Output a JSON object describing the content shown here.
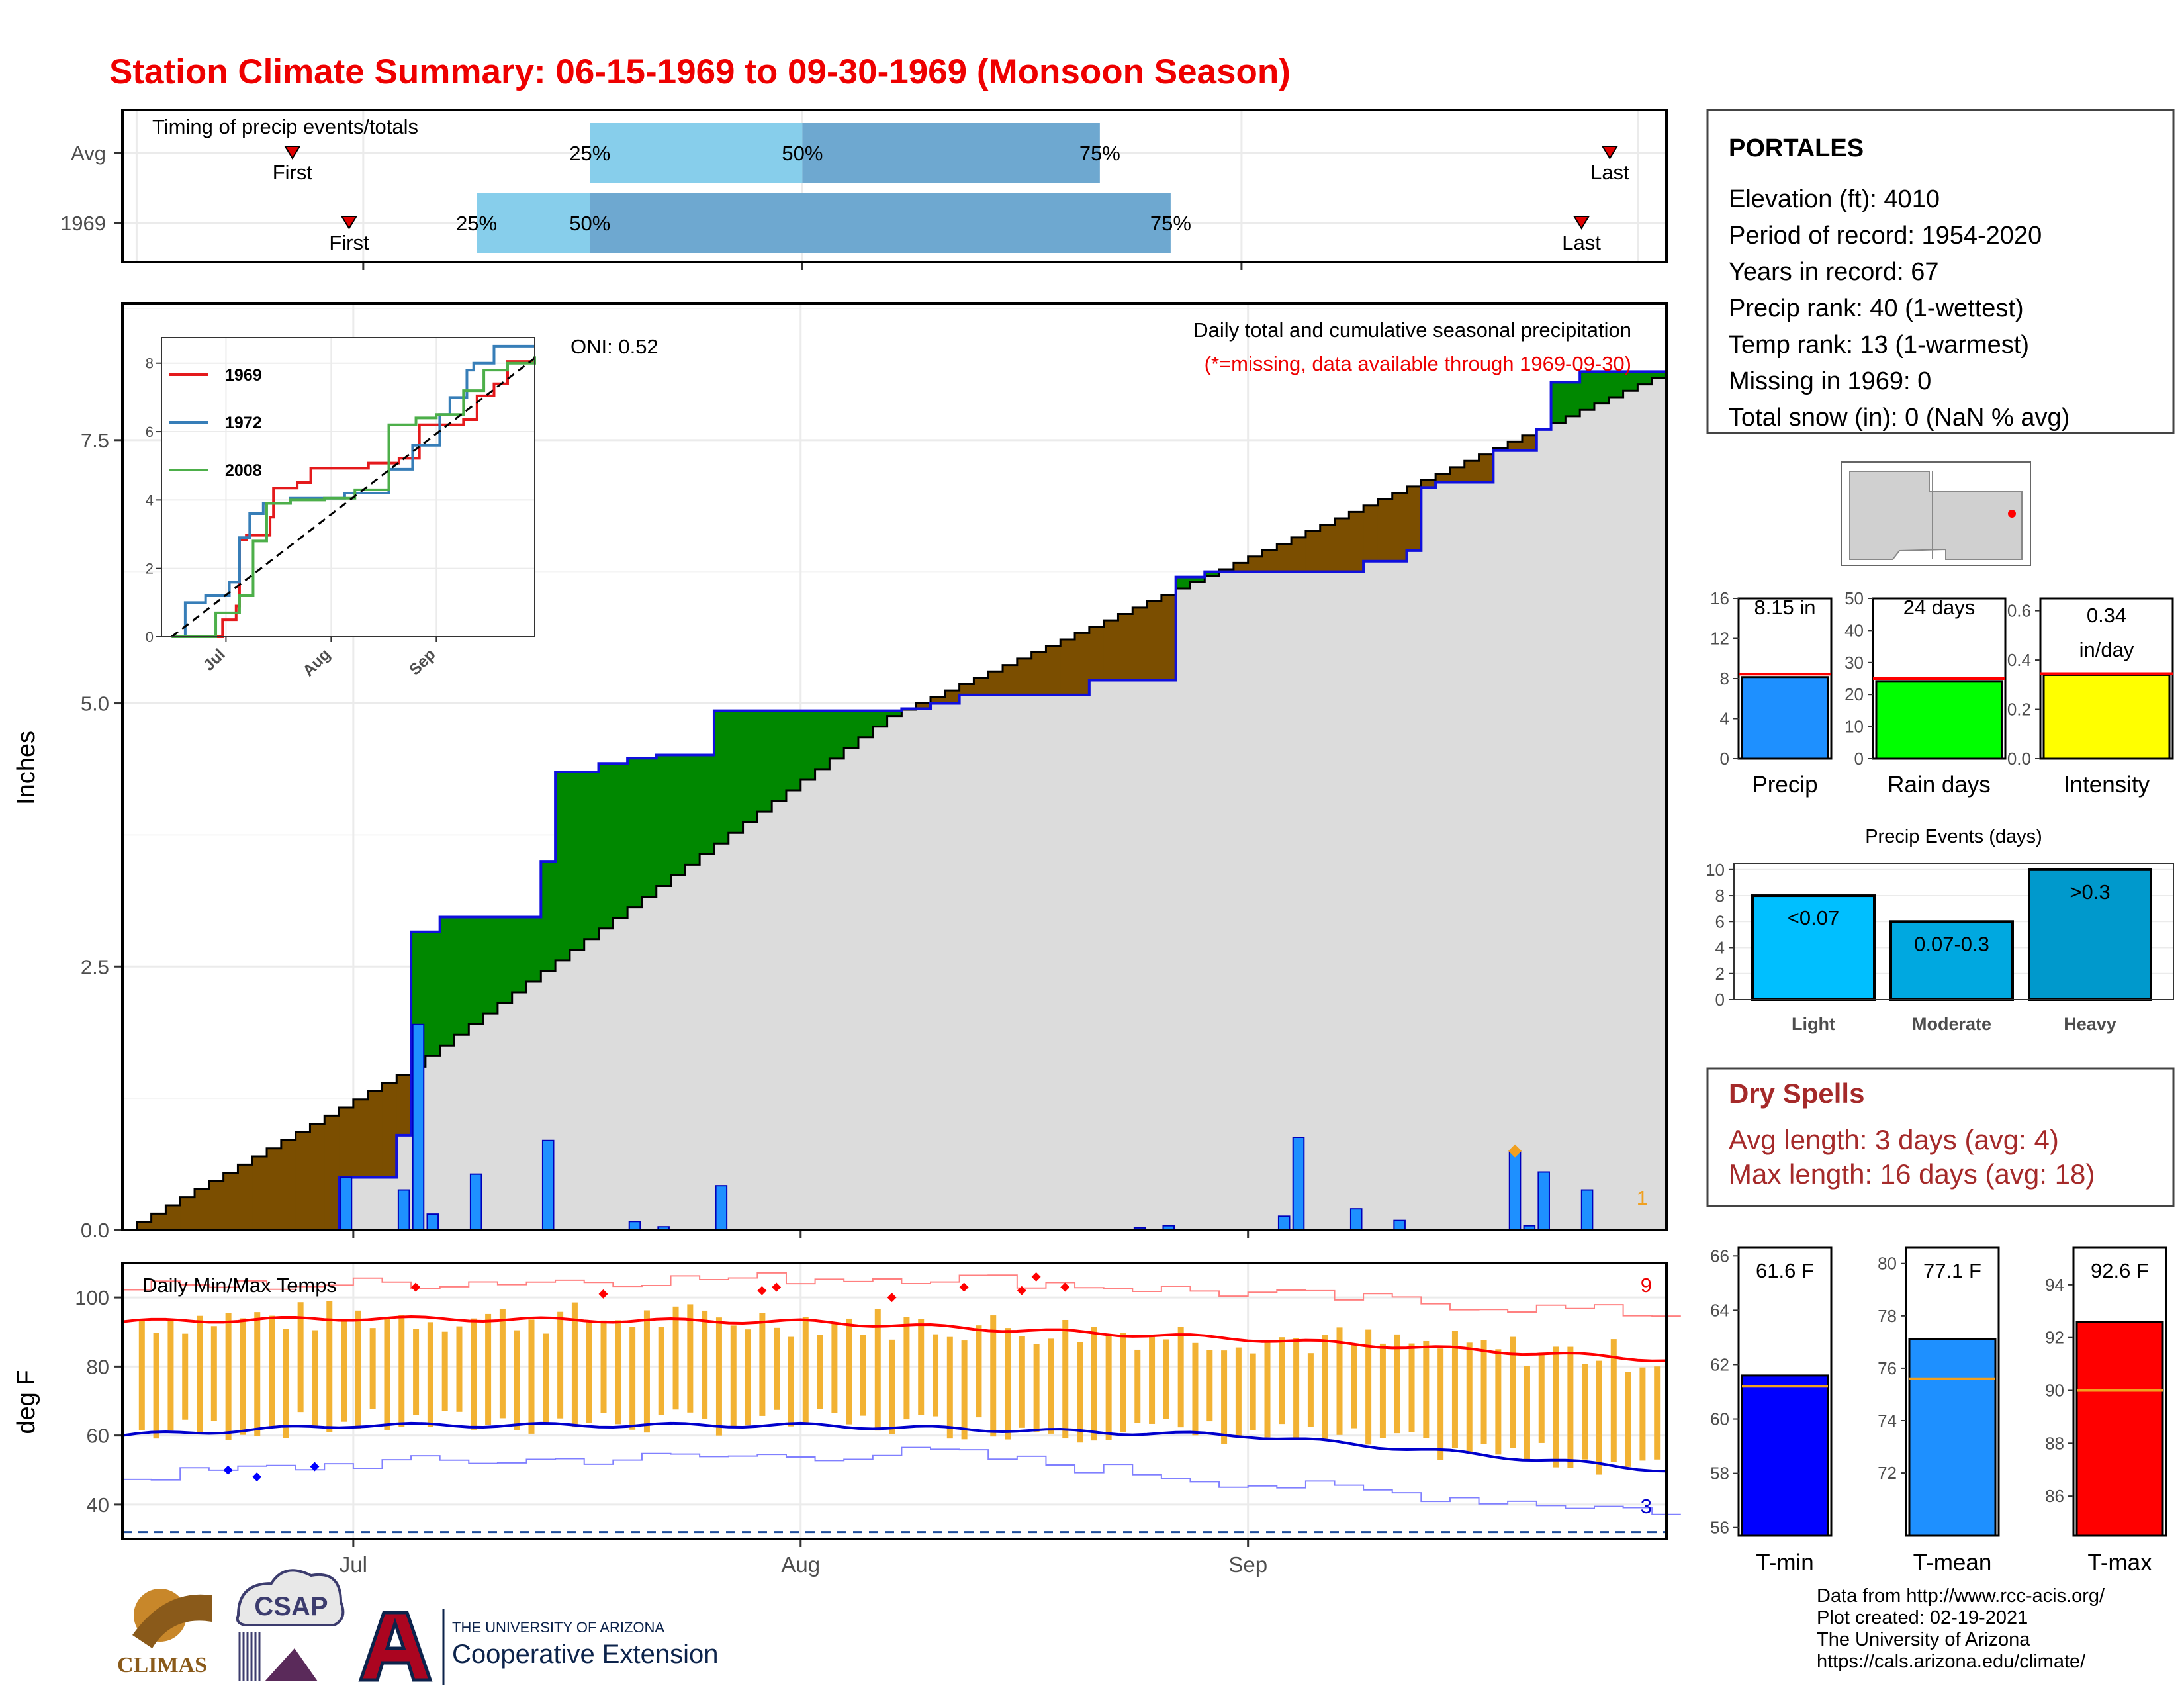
{
  "title": "Station Climate Summary: 06-15-1969 to 09-30-1969 (Monsoon Season)",
  "colors": {
    "title": "#ee0000",
    "normal_fill": "#dcdcdc",
    "above": "#008800",
    "below": "#7b4e00",
    "daily_bar": "#1e90ff",
    "timing_light": "#87ceeb",
    "timing_dark": "#6ea8d0",
    "tmax": "#ff0000",
    "tmin": "#0000cc",
    "temp_bar": "#f2b233",
    "dry": "#a52a2a"
  },
  "timing": {
    "title": "Timing of precip events/totals",
    "rows": [
      {
        "label": "Avg",
        "first": "First",
        "last": "Last",
        "p25": "25%",
        "p50": "50%",
        "p75": "75%",
        "first_date": "1969-06-26",
        "p25_date": "1969-07-17",
        "p50_date": "1969-08-01",
        "p75_date": "1969-08-22",
        "last_date": "1969-09-27"
      },
      {
        "label": "1969",
        "first": "First",
        "last": "Last",
        "p25": "25%",
        "p50": "50%",
        "p75": "75%",
        "first_date": "1969-06-30",
        "p25_date": "1969-07-09",
        "p50_date": "1969-07-17",
        "p75_date": "1969-08-27",
        "last_date": "1969-09-25"
      }
    ]
  },
  "station": {
    "name": "PORTALES",
    "lines": [
      "Elevation (ft): 4010",
      "Period of record: 1954-2020",
      "Years in record: 67",
      "Precip rank: 40 (1-wettest)",
      "Temp rank: 13 (1-warmest)",
      "Missing in 1969: 0",
      "Total snow (in): 0 (NaN % avg)"
    ]
  },
  "precip_panel": {
    "ylabel": "Inches",
    "yticks": [
      "0.0",
      "2.5",
      "5.0",
      "7.5"
    ],
    "oni": "ONI: 0.52",
    "subtitle": "Daily total and cumulative seasonal precipitation",
    "missing_note": "(*=missing, data available through 1969-09-30)",
    "corner_count": "1",
    "month_labels": [
      "Jul",
      "Aug",
      "Sep"
    ]
  },
  "inset": {
    "yticks": [
      "0",
      "2",
      "4",
      "6",
      "8"
    ],
    "xticks": [
      "Jul",
      "Aug",
      "Sep"
    ],
    "legend": [
      {
        "name": "1969",
        "color": "#e41a1c"
      },
      {
        "name": "1972",
        "color": "#377eb8"
      },
      {
        "name": "2008",
        "color": "#4daf4a"
      }
    ]
  },
  "mini_bars": [
    {
      "label": "Precip",
      "value_text": "8.15 in",
      "value": 8.15,
      "normal": 8.45,
      "ymax": 16,
      "ticks": [
        "0",
        "4",
        "8",
        "12",
        "16"
      ],
      "tickvals": [
        0,
        4,
        8,
        12,
        16
      ],
      "color": "#1e90ff"
    },
    {
      "label": "Rain days",
      "value_text": "24 days",
      "value": 24,
      "normal": 25,
      "ymax": 50,
      "ticks": [
        "0",
        "10",
        "20",
        "30",
        "40",
        "50"
      ],
      "tickvals": [
        0,
        10,
        20,
        30,
        40,
        50
      ],
      "color": "#00ff00"
    },
    {
      "label": "Intensity",
      "value_text": "0.34 in/day",
      "value_text_1": "0.34",
      "value_text_2": "in/day",
      "value": 0.34,
      "normal": 0.345,
      "ymax": 0.65,
      "ticks": [
        "0.0",
        "0.2",
        "0.4",
        "0.6"
      ],
      "tickvals": [
        0,
        0.2,
        0.4,
        0.6
      ],
      "color": "#ffff00"
    }
  ],
  "events": {
    "title": "Precip Events (days)",
    "ticks": [
      "0",
      "2",
      "4",
      "6",
      "8",
      "10"
    ],
    "bars": [
      {
        "cat": "Light",
        "label": "<0.07",
        "value": 8,
        "color": "#00bfff"
      },
      {
        "cat": "Moderate",
        "label": "0.07-0.3",
        "value": 6,
        "color": "#00a8e0"
      },
      {
        "cat": "Heavy",
        "label": ">0.3",
        "value": 10,
        "color": "#0099cc"
      }
    ]
  },
  "dry_spells": {
    "title": "Dry Spells",
    "avg_line": "Avg length: 3 days (avg: 4)",
    "max_line": "Max length: 16 days (avg: 18)"
  },
  "temp_panel": {
    "title": "Daily Min/Max Temps",
    "ylabel": "deg F",
    "yticks": [
      "40",
      "60",
      "80",
      "100"
    ],
    "tmax_count": "9",
    "tmin_count": "3",
    "month_labels": [
      "Jul",
      "Aug",
      "Sep"
    ]
  },
  "temp_bars": [
    {
      "label": "T-min",
      "value_text": "61.6 F",
      "value": 61.6,
      "normal": 61.2,
      "ymin": 55.7,
      "ymax": 66.3,
      "ticks": [
        "56",
        "58",
        "60",
        "62",
        "64",
        "66"
      ],
      "tickvals": [
        56,
        58,
        60,
        62,
        64,
        66
      ],
      "color": "#0000ff"
    },
    {
      "label": "T-mean",
      "value_text": "77.1 F",
      "value": 77.1,
      "normal": 75.6,
      "ymin": 69.6,
      "ymax": 80.6,
      "ticks": [
        "72",
        "74",
        "76",
        "78",
        "80"
      ],
      "tickvals": [
        72,
        74,
        76,
        78,
        80
      ],
      "color": "#1e90ff"
    },
    {
      "label": "T-max",
      "value_text": "92.6 F",
      "value": 92.6,
      "normal": 90.0,
      "ymin": 84.5,
      "ymax": 95.4,
      "ticks": [
        "86",
        "88",
        "90",
        "92",
        "94"
      ],
      "tickvals": [
        86,
        88,
        90,
        92,
        94
      ],
      "color": "#ff0000"
    }
  ],
  "footer": {
    "lines": [
      "Data from http://www.rcc-acis.org/",
      "Plot created: 02-19-2021",
      "The University of Arizona",
      "https://cals.arizona.edu/climate/"
    ],
    "logo_climas": "CLIMAS",
    "logo_csap": "CSAP",
    "ua_line1": "THE UNIVERSITY OF ARIZONA",
    "ua_line2": "Cooperative Extension"
  },
  "chart_data": [
    {
      "type": "area",
      "title": "Daily total and cumulative seasonal precipitation",
      "ylabel": "Inches",
      "ylim": [
        0,
        8.8
      ],
      "x_range": [
        "1969-06-15",
        "1969-09-30"
      ],
      "series": [
        {
          "name": "",
          "x": [
            "1969-06-15",
            "1969-06-30",
            "1969-07-04",
            "1969-07-05",
            "1969-07-07",
            "1969-07-14",
            "1969-07-15",
            "1969-07-18",
            "1969-07-20",
            "1969-07-22",
            "1969-07-26",
            "1969-08-08",
            "1969-08-10",
            "1969-08-12",
            "1969-08-21",
            "1969-08-27",
            "1969-08-29",
            "1969-09-09",
            "1969-09-12",
            "1969-09-13",
            "1969-09-14",
            "1969-09-18",
            "1969-09-21",
            "1969-09-22",
            "1969-09-24",
            "1969-09-27",
            "1969-09-30"
          ],
          "y": [
            0,
            0.5,
            0.9,
            2.83,
            2.97,
            3.5,
            4.35,
            4.43,
            4.48,
            4.51,
            4.93,
            4.95,
            5.0,
            5.08,
            5.22,
            6.2,
            6.25,
            6.35,
            6.45,
            7.05,
            7.1,
            7.4,
            7.6,
            8.05,
            8.15,
            8.15,
            8.15
          ]
        },
        {
          "name": "",
          "x": [
            "1969-06-15",
            "1969-07-05",
            "1969-08-07",
            "1969-09-30"
          ],
          "y": [
            0,
            1.55,
            4.88,
            8.15
          ]
        }
      ],
      "daily": {
        "x": [
          "1969-06-30",
          "1969-07-04",
          "1969-07-05",
          "1969-07-06",
          "1969-07-09",
          "1969-07-14",
          "1969-07-20",
          "1969-07-22",
          "1969-07-26",
          "1969-08-24",
          "1969-08-26",
          "1969-09-03",
          "1969-09-04",
          "1969-09-08",
          "1969-09-11",
          "1969-09-19",
          "1969-09-20",
          "1969-09-21",
          "1969-09-24"
        ],
        "y": [
          0.5,
          0.38,
          1.95,
          0.15,
          0.53,
          0.85,
          0.08,
          0.03,
          0.42,
          0.02,
          0.04,
          0.13,
          0.88,
          0.2,
          0.09,
          0.75,
          0.04,
          0.55,
          0.38
        ]
      }
    },
    {
      "type": "line",
      "title": "",
      "ylabel": "",
      "ylim": [
        0,
        8.5
      ],
      "x_range": [
        "1969-06-15",
        "1969-09-30"
      ],
      "series": [
        {
          "name": "1969",
          "x": [
            "1969-06-15",
            "1969-06-30",
            "1969-07-04",
            "1969-07-05",
            "1969-07-07",
            "1969-07-14",
            "1969-07-15",
            "1969-07-22",
            "1969-07-26",
            "1969-08-12",
            "1969-08-21",
            "1969-08-27",
            "1969-09-09",
            "1969-09-13",
            "1969-09-18",
            "1969-09-22",
            "1969-09-30"
          ],
          "y": [
            0,
            0.5,
            0.9,
            2.83,
            2.97,
            3.5,
            4.35,
            4.51,
            4.93,
            5.08,
            5.22,
            6.2,
            6.35,
            7.05,
            7.4,
            8.05,
            8.15
          ]
        },
        {
          "name": "1972",
          "x": [
            "1969-06-15",
            "1969-06-19",
            "1969-06-25",
            "1969-07-02",
            "1969-07-05",
            "1969-07-08",
            "1969-07-12",
            "1969-07-20",
            "1969-08-05",
            "1969-08-18",
            "1969-08-25",
            "1969-09-02",
            "1969-09-05",
            "1969-09-10",
            "1969-09-12",
            "1969-09-18"
          ],
          "y": [
            0,
            1.0,
            1.2,
            1.6,
            2.9,
            3.6,
            3.9,
            4.05,
            4.2,
            4.9,
            5.6,
            6.5,
            7.0,
            7.8,
            8.0,
            8.5
          ]
        },
        {
          "name": "2008",
          "x": [
            "1969-06-15",
            "1969-06-28",
            "1969-07-05",
            "1969-07-09",
            "1969-07-13",
            "1969-07-20",
            "1969-07-30",
            "1969-08-08",
            "1969-08-18",
            "1969-08-26",
            "1969-09-01",
            "1969-09-09",
            "1969-09-15",
            "1969-09-22",
            "1969-09-30"
          ],
          "y": [
            0,
            0.7,
            1.2,
            2.8,
            3.9,
            4.0,
            4.05,
            4.3,
            6.2,
            6.4,
            6.5,
            7.2,
            7.8,
            8.0,
            8.2
          ]
        },
        {
          "name": "",
          "x": [
            "1969-06-15",
            "1969-09-30"
          ],
          "y": [
            0,
            8.15
          ]
        }
      ]
    },
    {
      "type": "line",
      "title": "Daily Min/Max Temps",
      "ylabel": "deg F",
      "ylim": [
        30,
        110
      ],
      "x_range": [
        "1969-06-15",
        "1969-09-30"
      ],
      "series": [
        {
          "name": "",
          "x": [
            "1969-06-15",
            "1969-07-01",
            "1969-08-01",
            "1969-09-01",
            "1969-09-30"
          ],
          "y": [
            93,
            94,
            93,
            88,
            82
          ]
        },
        {
          "name": "",
          "x": [
            "1969-06-15",
            "1969-07-01",
            "1969-08-01",
            "1969-09-01",
            "1969-09-30"
          ],
          "y": [
            60,
            63,
            63,
            60,
            50
          ]
        },
        {
          "name": "",
          "x": [
            "1969-06-15",
            "1969-07-15",
            "1969-08-10",
            "1969-09-01",
            "1969-09-30"
          ],
          "y": [
            103,
            105,
            106,
            101,
            95
          ]
        },
        {
          "name": "",
          "x": [
            "1969-06-15",
            "1969-07-01",
            "1969-08-10",
            "1969-09-01",
            "1969-09-30"
          ],
          "y": [
            48,
            52,
            55,
            46,
            38
          ]
        }
      ],
      "records_high": {
        "x": [
          "1969-07-05",
          "1969-07-18",
          "1969-07-29",
          "1969-07-30",
          "1969-08-07",
          "1969-08-12",
          "1969-08-16",
          "1969-08-17",
          "1969-08-19"
        ],
        "y": [
          103,
          101,
          102,
          103,
          100,
          103,
          102,
          106,
          103
        ]
      },
      "records_low": {
        "x": [
          "1969-06-22",
          "1969-06-24",
          "1969-06-28"
        ],
        "y": [
          50,
          48,
          51
        ]
      }
    }
  ]
}
